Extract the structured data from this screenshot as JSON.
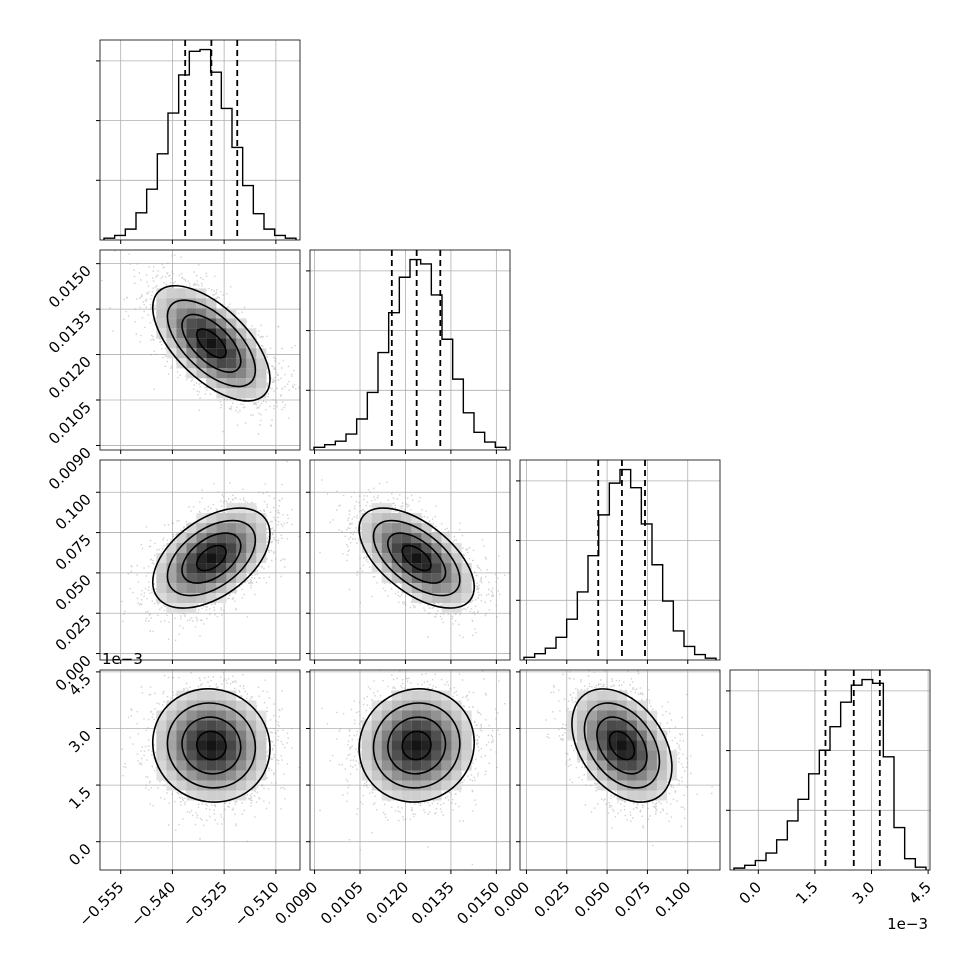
{
  "chart_data": {
    "type": "corner",
    "grid": true,
    "colors": {
      "line": "#000000",
      "grid": "#b0b0b0",
      "scatter": "#9a9a9a",
      "background": "#ffffff"
    },
    "params": [
      {
        "xlim": [
          -0.561,
          -0.503
        ],
        "ticks": [
          -0.555,
          -0.54,
          -0.525,
          -0.51
        ],
        "tick_labels": [
          "−0.555",
          "−0.540",
          "−0.525",
          "−0.510"
        ],
        "quantiles": [
          -0.5363,
          -0.5287,
          -0.5212
        ],
        "hist": [
          0.2,
          0.5,
          1.2,
          3.0,
          5.6,
          9.5,
          14.0,
          18.2,
          20.8,
          21.0,
          18.5,
          14.5,
          10.2,
          6.0,
          2.9,
          1.2,
          0.5,
          0.2
        ],
        "exponent_label": ""
      },
      {
        "xlim": [
          0.00885,
          0.01545
        ],
        "ticks": [
          0.009,
          0.0105,
          0.012,
          0.0135,
          0.015
        ],
        "tick_labels": [
          "0.0090",
          "0.0105",
          "0.0120",
          "0.0135",
          "0.0150"
        ],
        "quantiles": [
          0.01155,
          0.01237,
          0.01315
        ],
        "hist": [
          0.3,
          0.6,
          1.0,
          1.8,
          3.5,
          6.5,
          11.0,
          15.5,
          19.5,
          21.5,
          21.0,
          17.5,
          12.5,
          8.0,
          4.2,
          2.0,
          0.9,
          0.3
        ],
        "exponent_label": ""
      },
      {
        "xlim": [
          -0.004,
          0.12
        ],
        "ticks": [
          0.0,
          0.025,
          0.05,
          0.075,
          0.1
        ],
        "tick_labels": [
          "0.000",
          "0.025",
          "0.050",
          "0.075",
          "0.100"
        ],
        "quantiles": [
          0.0445,
          0.0592,
          0.0735
        ],
        "hist": [
          0.3,
          0.7,
          1.3,
          2.5,
          4.5,
          7.5,
          11.5,
          16.0,
          19.5,
          21.0,
          19.0,
          15.0,
          10.5,
          6.5,
          3.2,
          1.5,
          0.6,
          0.2
        ],
        "exponent_label": ""
      },
      {
        "xlim": [
          -0.75,
          4.55
        ],
        "ticks": [
          0.0,
          1.5,
          3.0,
          4.5
        ],
        "tick_labels": [
          "0.0",
          "1.5",
          "3.0",
          "4.5"
        ],
        "quantiles": [
          1.78,
          2.53,
          3.22
        ],
        "hist": [
          0.2,
          0.5,
          1.0,
          1.8,
          3.2,
          5.2,
          7.5,
          10.2,
          12.7,
          15.2,
          17.8,
          19.6,
          20.2,
          19.8,
          12.0,
          4.5,
          1.2,
          0.3
        ],
        "exponent_label": "1e−3"
      }
    ],
    "pairs": [
      {
        "row": 1,
        "col": 0,
        "cx": -0.5287,
        "cy": 0.01237,
        "sx": 0.0085,
        "sy": 0.00095,
        "rho": -0.62
      },
      {
        "row": 2,
        "col": 0,
        "cx": -0.5287,
        "cy": 0.0592,
        "sx": 0.0085,
        "sy": 0.0155,
        "rho": 0.48
      },
      {
        "row": 2,
        "col": 1,
        "cx": 0.01237,
        "cy": 0.0592,
        "sx": 0.00095,
        "sy": 0.0155,
        "rho": -0.58
      },
      {
        "row": 3,
        "col": 0,
        "cx": -0.5287,
        "cy": 2.55,
        "sx": 0.0085,
        "sy": 0.75,
        "rho": -0.05
      },
      {
        "row": 3,
        "col": 1,
        "cx": 0.01237,
        "cy": 2.55,
        "sx": 0.00095,
        "sy": 0.75,
        "rho": 0.05
      },
      {
        "row": 3,
        "col": 2,
        "cx": 0.0592,
        "cy": 2.55,
        "sx": 0.0155,
        "sy": 0.75,
        "rho": -0.38
      }
    ]
  }
}
